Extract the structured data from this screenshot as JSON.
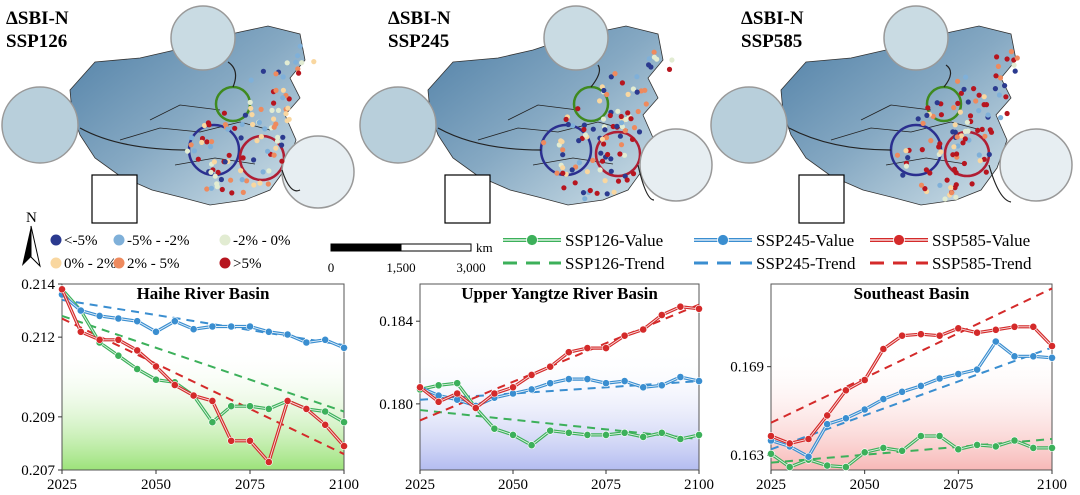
{
  "maps": [
    {
      "label1": "ΔSBI-N",
      "label2": "SSP126"
    },
    {
      "label1": "ΔSBI-N",
      "label2": "SSP245"
    },
    {
      "label1": "ΔSBI-N",
      "label2": "SSP585"
    }
  ],
  "map_legend": {
    "north": "N",
    "classes": [
      {
        "label": "<-5%",
        "color": "#2b3a8f"
      },
      {
        "label": "-5% - -2%",
        "color": "#7fb0d9"
      },
      {
        "label": "-2% - 0%",
        "color": "#e2ecd2"
      },
      {
        "label": "0% - 2%",
        "color": "#f9d7a0"
      },
      {
        "label": "2% - 5%",
        "color": "#ee8a5e"
      },
      {
        "label": ">5%",
        "color": "#b7151f"
      }
    ],
    "scalebar": {
      "unit": "km",
      "ticks": [
        "0",
        "1,500",
        "3,000"
      ]
    }
  },
  "line_legend": [
    {
      "label": "SSP126-Value",
      "color": "#3cb05a",
      "style": "value"
    },
    {
      "label": "SSP245-Value",
      "color": "#3a8ed0",
      "style": "value"
    },
    {
      "label": "SSP585-Value",
      "color": "#d42a2a",
      "style": "value"
    },
    {
      "label": "SSP126-Trend",
      "color": "#3cb05a",
      "style": "trend"
    },
    {
      "label": "SSP245-Trend",
      "color": "#3a8ed0",
      "style": "trend"
    },
    {
      "label": "SSP585-Trend",
      "color": "#d42a2a",
      "style": "trend"
    }
  ],
  "colors": {
    "ssp126": "#3cb05a",
    "ssp245": "#3a8ed0",
    "ssp585": "#d42a2a"
  },
  "chart_data": [
    {
      "type": "line",
      "title": "Haihe River Basin",
      "x": [
        2025,
        2030,
        2035,
        2040,
        2045,
        2050,
        2055,
        2060,
        2065,
        2070,
        2075,
        2080,
        2085,
        2090,
        2095,
        2100
      ],
      "xticks": [
        2025,
        2050,
        2075,
        2100
      ],
      "ylim": [
        0.207,
        0.214
      ],
      "yticks": [
        "0.207",
        "0.209",
        "0.212",
        "0.214"
      ],
      "background": "green",
      "series": [
        {
          "name": "SSP126-Value",
          "values": [
            0.2138,
            0.213,
            0.2118,
            0.2113,
            0.2108,
            0.2104,
            0.2103,
            0.2098,
            0.2088,
            0.2094,
            0.2094,
            0.2093,
            0.2096,
            0.2093,
            0.2092,
            0.2088
          ]
        },
        {
          "name": "SSP245-Value",
          "values": [
            0.2136,
            0.213,
            0.2128,
            0.2127,
            0.2126,
            0.2122,
            0.2126,
            0.2123,
            0.2124,
            0.2124,
            0.2124,
            0.2122,
            0.2121,
            0.2118,
            0.2119,
            0.2116
          ]
        },
        {
          "name": "SSP585-Value",
          "values": [
            0.2138,
            0.2122,
            0.2119,
            0.2119,
            0.2115,
            0.2109,
            0.2102,
            0.2098,
            0.2096,
            0.2081,
            0.2081,
            0.2073,
            0.2096,
            0.2093,
            0.2087,
            0.2079
          ]
        }
      ],
      "trends": [
        {
          "name": "SSP126-Trend",
          "start": 0.2128,
          "end": 0.2092
        },
        {
          "name": "SSP245-Trend",
          "start": 0.2134,
          "end": 0.2117
        },
        {
          "name": "SSP585-Trend",
          "start": 0.2127,
          "end": 0.2076
        }
      ]
    },
    {
      "type": "line",
      "title": "Upper Yangtze River Basin",
      "x": [
        2025,
        2030,
        2035,
        2040,
        2045,
        2050,
        2055,
        2060,
        2065,
        2070,
        2075,
        2080,
        2085,
        2090,
        2095,
        2100
      ],
      "xticks": [
        2025,
        2050,
        2075,
        2100
      ],
      "ylim": [
        0.1768,
        0.1858
      ],
      "yticks": [
        "0.180",
        "0.184"
      ],
      "ytick_values": [
        0.18,
        0.184
      ],
      "background": "blue",
      "series": [
        {
          "name": "SSP126-Value",
          "values": [
            0.1807,
            0.1809,
            0.181,
            0.1798,
            0.1788,
            0.1785,
            0.178,
            0.1787,
            0.1786,
            0.1785,
            0.1785,
            0.1786,
            0.1784,
            0.1786,
            0.1783,
            0.1785
          ]
        },
        {
          "name": "SSP245-Value",
          "values": [
            0.1808,
            0.1804,
            0.1802,
            0.1799,
            0.1803,
            0.1805,
            0.1807,
            0.181,
            0.1812,
            0.1812,
            0.181,
            0.1811,
            0.1808,
            0.1809,
            0.1813,
            0.1811
          ]
        },
        {
          "name": "SSP585-Value",
          "values": [
            0.1808,
            0.1801,
            0.1805,
            0.1798,
            0.1805,
            0.1808,
            0.1814,
            0.1818,
            0.1825,
            0.1827,
            0.1827,
            0.1833,
            0.1836,
            0.1843,
            0.1847,
            0.1846
          ]
        }
      ],
      "trends": [
        {
          "name": "SSP126-Trend",
          "start": 0.1797,
          "end": 0.1783
        },
        {
          "name": "SSP245-Trend",
          "start": 0.1802,
          "end": 0.1811
        },
        {
          "name": "SSP585-Trend",
          "start": 0.1792,
          "end": 0.1848
        }
      ]
    },
    {
      "type": "line",
      "title": "Southeast Basin",
      "x": [
        2025,
        2030,
        2035,
        2040,
        2045,
        2050,
        2055,
        2060,
        2065,
        2070,
        2075,
        2080,
        2085,
        2090,
        2095,
        2100
      ],
      "xticks": [
        2025,
        2050,
        2075,
        2100
      ],
      "ylim": [
        0.162,
        0.1746
      ],
      "yticks": [
        "0.163",
        "0.169"
      ],
      "ytick_values": [
        0.163,
        0.169
      ],
      "background": "red",
      "series": [
        {
          "name": "SSP126-Value",
          "values": [
            0.1631,
            0.1622,
            0.1627,
            0.1623,
            0.1622,
            0.1632,
            0.1635,
            0.1633,
            0.1643,
            0.1643,
            0.1634,
            0.1637,
            0.1636,
            0.164,
            0.1635,
            0.1635
          ]
        },
        {
          "name": "SSP245-Value",
          "values": [
            0.164,
            0.1636,
            0.1629,
            0.1651,
            0.1655,
            0.1661,
            0.1668,
            0.1673,
            0.1677,
            0.1682,
            0.1685,
            0.1688,
            0.1707,
            0.1697,
            0.1697,
            0.1696
          ]
        },
        {
          "name": "SSP585-Value",
          "values": [
            0.1643,
            0.1638,
            0.1641,
            0.1657,
            0.1674,
            0.1681,
            0.1702,
            0.1711,
            0.1712,
            0.1711,
            0.1716,
            0.1713,
            0.1715,
            0.1717,
            0.1717,
            0.1704
          ]
        }
      ],
      "trends": [
        {
          "name": "SSP126-Trend",
          "start": 0.1625,
          "end": 0.1641
        },
        {
          "name": "SSP245-Trend",
          "start": 0.1634,
          "end": 0.1703
        },
        {
          "name": "SSP585-Trend",
          "start": 0.1652,
          "end": 0.1743
        }
      ]
    }
  ]
}
